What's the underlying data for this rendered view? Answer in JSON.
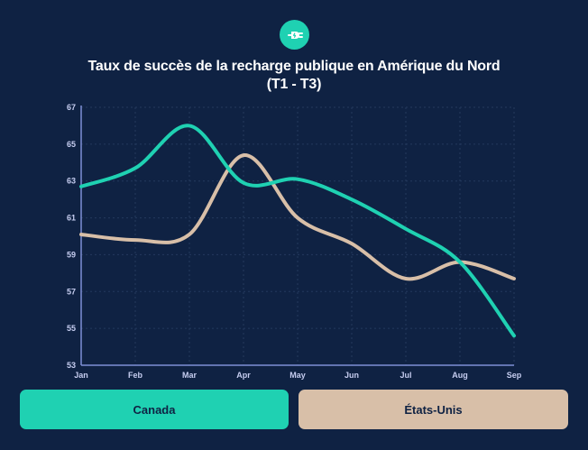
{
  "header": {
    "logo_icon": "ev-plug-icon",
    "title_line1": "Taux de succès de la recharge publique en Amérique du Nord",
    "title_line2": "(T1 - T3)"
  },
  "colors": {
    "background": "#0f2243",
    "canada": "#1fd1b2",
    "us": "#d8bfa8",
    "axis": "#7f8fd6",
    "tick_text": "#c6cdf0"
  },
  "legend": {
    "canada_label": "Canada",
    "us_label": "États-Unis"
  },
  "chart_data": {
    "type": "line",
    "title": "Taux de succès de la recharge publique en Amérique du Nord (T1 - T3)",
    "xlabel": "",
    "ylabel": "",
    "categories": [
      "Jan",
      "Feb",
      "Mar",
      "Apr",
      "May",
      "Jun",
      "Jul",
      "Aug",
      "Sep"
    ],
    "ylim": [
      53,
      67
    ],
    "yticks": [
      53,
      55,
      57,
      59,
      61,
      63,
      65,
      67
    ],
    "grid": true,
    "legend_position": "bottom",
    "series": [
      {
        "name": "Canada",
        "color": "#1fd1b2",
        "values": [
          62.7,
          63.7,
          66.0,
          62.9,
          63.1,
          62.0,
          60.4,
          58.6,
          54.6
        ]
      },
      {
        "name": "États-Unis",
        "color": "#d8bfa8",
        "values": [
          60.1,
          59.8,
          60.1,
          64.4,
          61.0,
          59.6,
          57.7,
          58.6,
          57.7
        ]
      }
    ]
  }
}
